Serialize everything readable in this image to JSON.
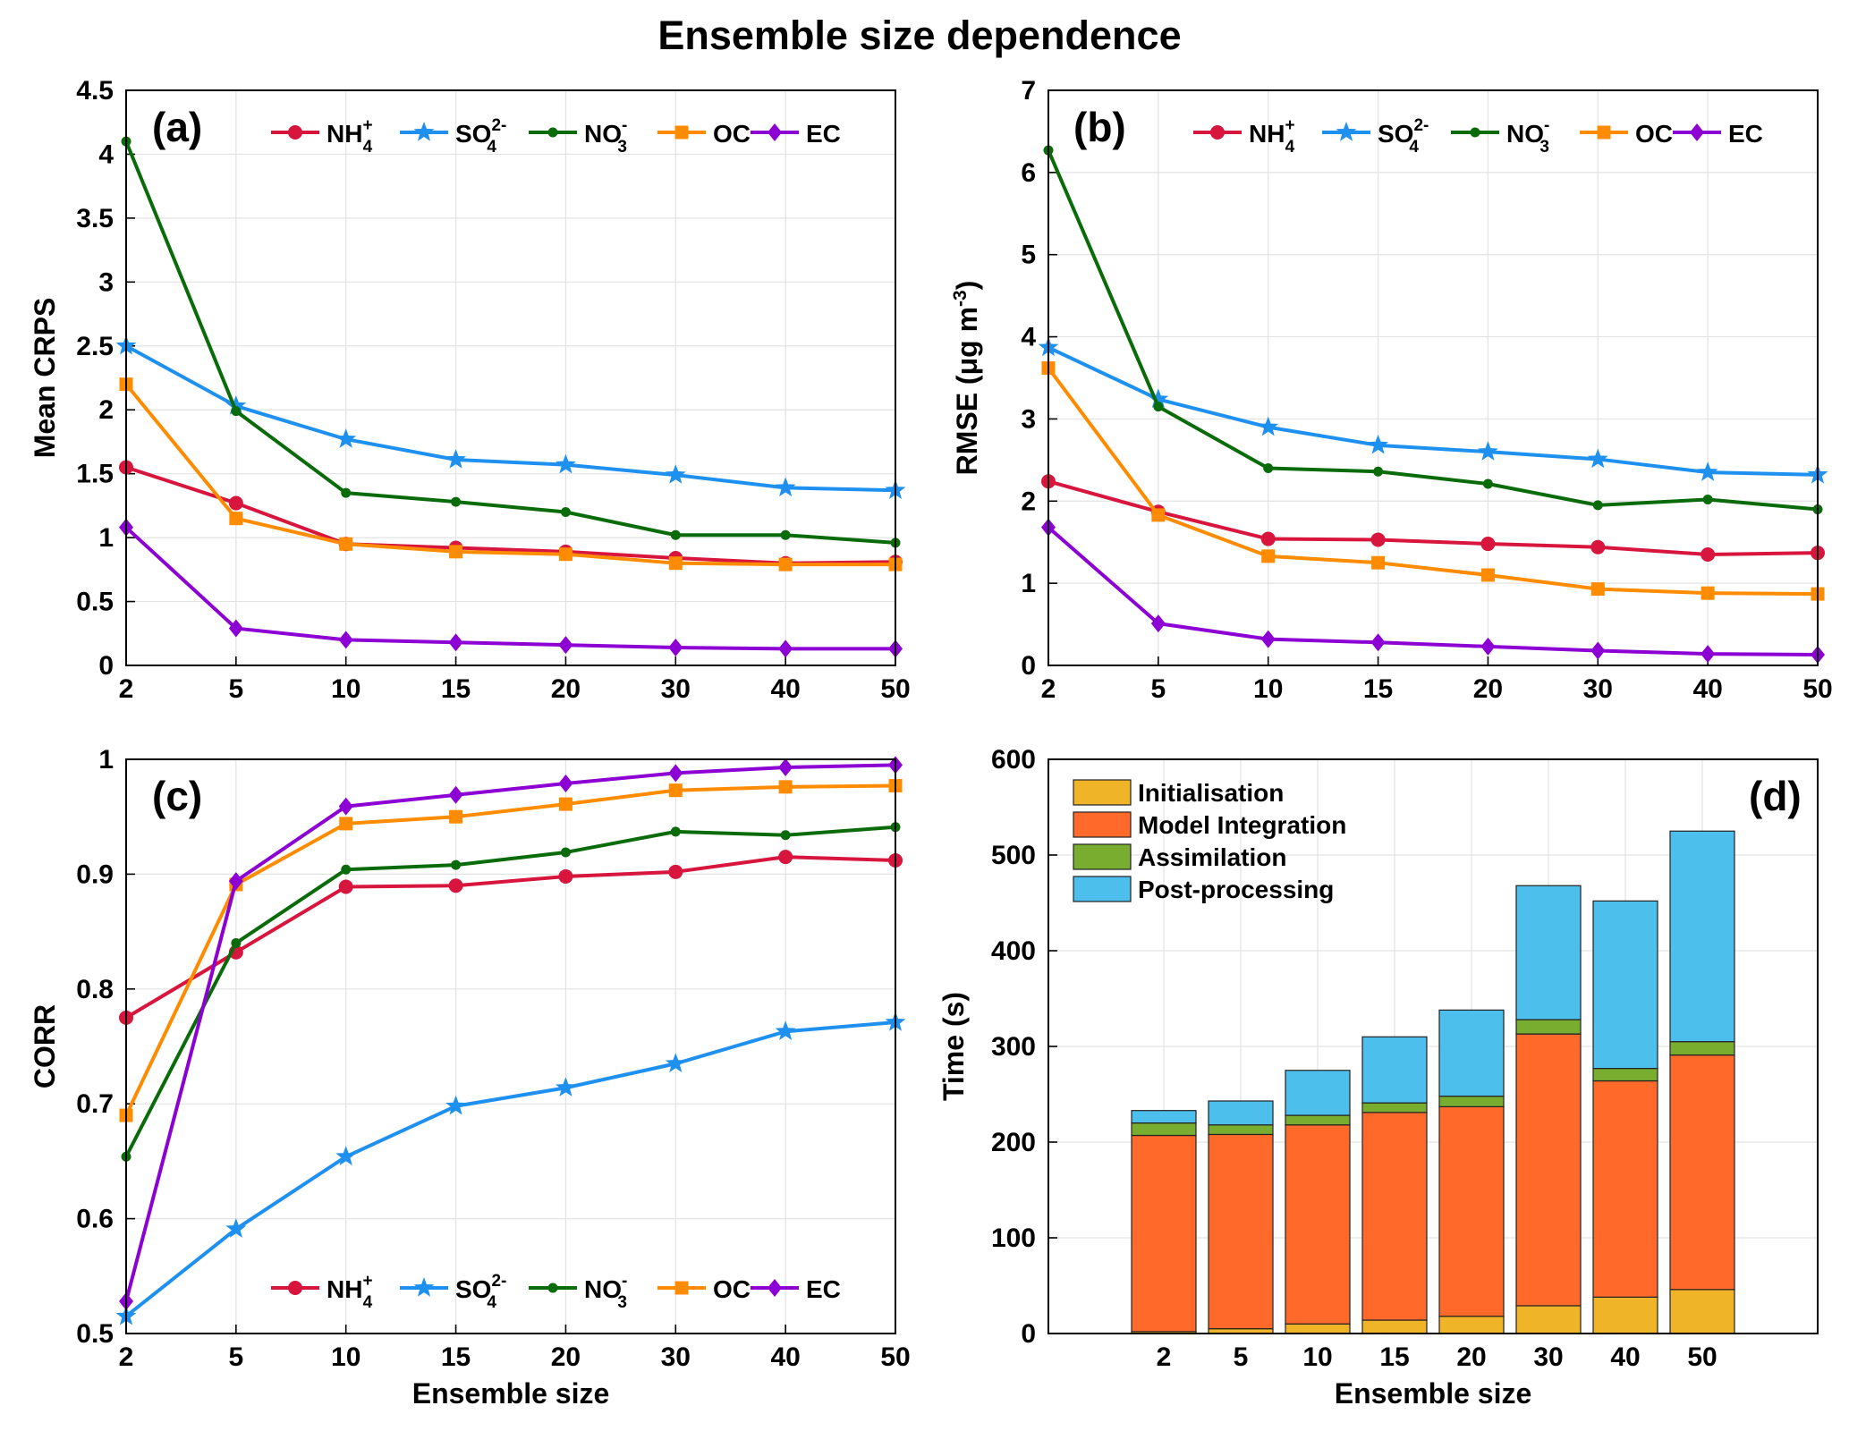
{
  "figure": {
    "title": "Ensemble size dependence"
  },
  "colors": {
    "NH4": "#d7153d",
    "SO4": "#1e90f0",
    "NO3": "#0a6b0a",
    "OC": "#ff8c00",
    "EC": "#8c00d4",
    "Initialisation": "#f0b428",
    "Model Integration": "#ff6a2a",
    "Assimilation": "#78ad30",
    "Post-processing": "#4cbfec"
  },
  "chart_data": [
    {
      "panel": "a",
      "label": "(a)",
      "type": "line",
      "categories": [
        "2",
        "5",
        "10",
        "15",
        "20",
        "30",
        "40",
        "50"
      ],
      "xlabel": "",
      "ylabel": "Mean CRPS",
      "ylim": [
        0,
        4.5
      ],
      "yticks": [
        "0",
        "0.5",
        "1",
        "1.5",
        "2",
        "2.5",
        "3",
        "3.5",
        "4",
        "4.5"
      ],
      "grid": true,
      "legend_position": "top",
      "series": [
        {
          "key": "NH4",
          "base": "NH",
          "sub": "4",
          "sup": "+",
          "marker": "circle",
          "values": [
            1.55,
            1.27,
            0.95,
            0.92,
            0.89,
            0.84,
            0.8,
            0.81
          ]
        },
        {
          "key": "SO4",
          "base": "SO",
          "sub": "4",
          "sup": "2-",
          "marker": "star",
          "values": [
            2.5,
            2.03,
            1.77,
            1.61,
            1.57,
            1.49,
            1.39,
            1.37
          ]
        },
        {
          "key": "NO3",
          "base": "NO",
          "sub": "3",
          "sup": "-",
          "marker": "dot",
          "values": [
            4.1,
            1.99,
            1.35,
            1.28,
            1.2,
            1.02,
            1.02,
            0.96
          ]
        },
        {
          "key": "OC",
          "base": "OC",
          "sub": "",
          "sup": "",
          "marker": "square",
          "values": [
            2.2,
            1.15,
            0.95,
            0.89,
            0.87,
            0.8,
            0.79,
            0.79
          ]
        },
        {
          "key": "EC",
          "base": "EC",
          "sub": "",
          "sup": "",
          "marker": "diamond",
          "values": [
            1.08,
            0.29,
            0.2,
            0.18,
            0.16,
            0.14,
            0.13,
            0.13
          ]
        }
      ]
    },
    {
      "panel": "b",
      "label": "(b)",
      "type": "line",
      "categories": [
        "2",
        "5",
        "10",
        "15",
        "20",
        "30",
        "40",
        "50"
      ],
      "xlabel": "",
      "ylabel_base": "RMSE (μg m",
      "ylabel_sup": "-3",
      "ylabel_end": ")",
      "ylim": [
        0,
        7
      ],
      "yticks": [
        "0",
        "1",
        "2",
        "3",
        "4",
        "5",
        "6",
        "7"
      ],
      "grid": true,
      "legend_position": "top",
      "series": [
        {
          "key": "NH4",
          "base": "NH",
          "sub": "4",
          "sup": "+",
          "marker": "circle",
          "values": [
            2.24,
            1.87,
            1.54,
            1.53,
            1.48,
            1.44,
            1.35,
            1.37
          ]
        },
        {
          "key": "SO4",
          "base": "SO",
          "sub": "4",
          "sup": "2-",
          "marker": "star",
          "values": [
            3.87,
            3.24,
            2.9,
            2.68,
            2.6,
            2.51,
            2.35,
            2.32
          ]
        },
        {
          "key": "NO3",
          "base": "NO",
          "sub": "3",
          "sup": "-",
          "marker": "dot",
          "values": [
            6.27,
            3.15,
            2.4,
            2.36,
            2.21,
            1.95,
            2.02,
            1.9
          ]
        },
        {
          "key": "OC",
          "base": "OC",
          "sub": "",
          "sup": "",
          "marker": "square",
          "values": [
            3.62,
            1.83,
            1.33,
            1.25,
            1.1,
            0.93,
            0.88,
            0.87
          ]
        },
        {
          "key": "EC",
          "base": "EC",
          "sub": "",
          "sup": "",
          "marker": "diamond",
          "values": [
            1.68,
            0.51,
            0.32,
            0.28,
            0.23,
            0.18,
            0.14,
            0.13
          ]
        }
      ]
    },
    {
      "panel": "c",
      "label": "(c)",
      "type": "line",
      "categories": [
        "2",
        "5",
        "10",
        "15",
        "20",
        "30",
        "40",
        "50"
      ],
      "xlabel": "Ensemble size",
      "ylabel": "CORR",
      "ylim": [
        0.5,
        1.0
      ],
      "yticks": [
        "0.5",
        "0.6",
        "0.7",
        "0.8",
        "0.9",
        "1"
      ],
      "grid": true,
      "legend_position": "bottom",
      "series": [
        {
          "key": "NH4",
          "base": "NH",
          "sub": "4",
          "sup": "+",
          "marker": "circle",
          "values": [
            0.775,
            0.832,
            0.889,
            0.89,
            0.898,
            0.902,
            0.915,
            0.912
          ]
        },
        {
          "key": "SO4",
          "base": "SO",
          "sub": "4",
          "sup": "2-",
          "marker": "star",
          "values": [
            0.515,
            0.591,
            0.654,
            0.698,
            0.714,
            0.735,
            0.763,
            0.771
          ]
        },
        {
          "key": "NO3",
          "base": "NO",
          "sub": "3",
          "sup": "-",
          "marker": "dot",
          "values": [
            0.654,
            0.84,
            0.904,
            0.908,
            0.919,
            0.937,
            0.934,
            0.941
          ]
        },
        {
          "key": "OC",
          "base": "OC",
          "sub": "",
          "sup": "",
          "marker": "square",
          "values": [
            0.69,
            0.891,
            0.944,
            0.95,
            0.961,
            0.973,
            0.976,
            0.977
          ]
        },
        {
          "key": "EC",
          "base": "EC",
          "sub": "",
          "sup": "",
          "marker": "diamond",
          "values": [
            0.528,
            0.894,
            0.959,
            0.969,
            0.979,
            0.988,
            0.993,
            0.995
          ]
        }
      ]
    },
    {
      "panel": "d",
      "label": "(d)",
      "type": "bar",
      "stacked": true,
      "categories": [
        "2",
        "5",
        "10",
        "15",
        "20",
        "30",
        "40",
        "50"
      ],
      "xlabel": "Ensemble size",
      "ylabel": "Time (s)",
      "ylim": [
        0,
        600
      ],
      "yticks": [
        "0",
        "100",
        "200",
        "300",
        "400",
        "500",
        "600"
      ],
      "grid": true,
      "legend_position": "top-left",
      "series": [
        {
          "name": "Initialisation",
          "values": [
            2,
            5,
            10,
            14,
            18,
            29,
            38,
            46
          ]
        },
        {
          "name": "Model Integration",
          "values": [
            205,
            203,
            208,
            217,
            219,
            284,
            226,
            245
          ]
        },
        {
          "name": "Assimilation",
          "values": [
            13,
            10,
            10,
            10,
            11,
            15,
            13,
            14
          ]
        },
        {
          "name": "Post-processing",
          "values": [
            13,
            25,
            47,
            69,
            90,
            140,
            175,
            220
          ]
        }
      ]
    }
  ]
}
